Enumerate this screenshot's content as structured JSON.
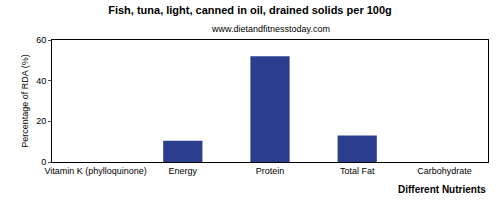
{
  "chart_data": {
    "type": "bar",
    "title": "Fish, tuna, light, canned in oil, drained solids per 100g",
    "subtitle": "www.dietandfitnesstoday.com",
    "x_label": "Different Nutrients",
    "y_label": "Percentage of RDA (%)",
    "categories": [
      "Vitamin K (phylloquinone)",
      "Energy",
      "Protein",
      "Total Fat",
      "Carbohydrate"
    ],
    "values": [
      0,
      10.5,
      52,
      13,
      0
    ],
    "color": "#2b3e8e",
    "ylim": [
      0,
      60
    ],
    "yticks": [
      0,
      20,
      40,
      60
    ],
    "grid": false
  }
}
